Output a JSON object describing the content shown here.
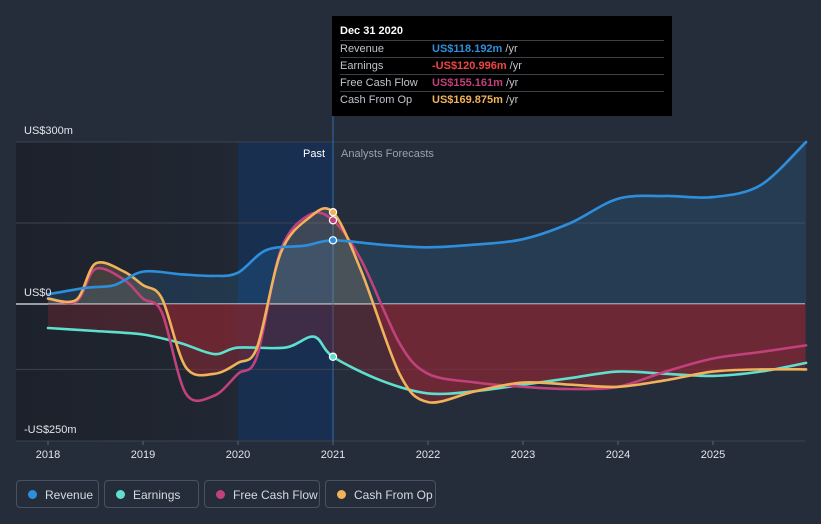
{
  "colors": {
    "background": "#262d3a",
    "revenue": "#2d8fdc",
    "earnings": "#5ee0cf",
    "free_cash_flow": "#c2417c",
    "cash_from_op": "#f0b25a",
    "negative_fill": "#8a2833",
    "tooltip_negative": "#ef4444"
  },
  "tooltip": {
    "date": "Dec 31 2020",
    "rows": [
      {
        "name": "Revenue",
        "value": "US$118.192m",
        "unit": "/yr",
        "color": "#2d8fdc"
      },
      {
        "name": "Earnings",
        "value": "-US$120.996m",
        "unit": "/yr",
        "color": "#ef4444"
      },
      {
        "name": "Free Cash Flow",
        "value": "US$155.161m",
        "unit": "/yr",
        "color": "#c2417c"
      },
      {
        "name": "Cash From Op",
        "value": "US$169.875m",
        "unit": "/yr",
        "color": "#f0b25a"
      }
    ]
  },
  "legend": [
    {
      "label": "Revenue",
      "color": "#2d8fdc"
    },
    {
      "label": "Earnings",
      "color": "#5ee0cf"
    },
    {
      "label": "Free Cash Flow",
      "color": "#c2417c"
    },
    {
      "label": "Cash From Op",
      "color": "#f0b25a"
    }
  ],
  "chart_data": {
    "type": "line",
    "y_tick_labels": [
      "US$300m",
      "US$0",
      "-US$250m"
    ],
    "ylim": [
      -250,
      300
    ],
    "xlim": [
      2018.0,
      2025.98
    ],
    "x_tick_labels": [
      "2018",
      "2019",
      "2020",
      "2021",
      "2022",
      "2023",
      "2024",
      "2025"
    ],
    "x_ticks": [
      2018,
      2019,
      2020,
      2021,
      2022,
      2023,
      2024,
      2025
    ],
    "divider_x": 2021.0,
    "past_label": "Past",
    "forecast_label": "Analysts Forecasts",
    "highlight_range": [
      2020.0,
      2021.0
    ],
    "grid": "horizontal",
    "series": [
      {
        "name": "Revenue",
        "key": "revenue",
        "points": [
          [
            2018.0,
            18
          ],
          [
            2018.4,
            30
          ],
          [
            2018.7,
            35
          ],
          [
            2019.0,
            60
          ],
          [
            2019.4,
            55
          ],
          [
            2019.75,
            52
          ],
          [
            2020.0,
            58
          ],
          [
            2020.3,
            100
          ],
          [
            2020.7,
            108
          ],
          [
            2021.0,
            118
          ],
          [
            2021.5,
            110
          ],
          [
            2022.0,
            105
          ],
          [
            2022.5,
            110
          ],
          [
            2023.0,
            120
          ],
          [
            2023.5,
            150
          ],
          [
            2024.0,
            195
          ],
          [
            2024.5,
            200
          ],
          [
            2025.0,
            198
          ],
          [
            2025.5,
            220
          ],
          [
            2025.98,
            300
          ]
        ]
      },
      {
        "name": "Earnings",
        "key": "earnings",
        "points": [
          [
            2018.0,
            -55
          ],
          [
            2018.5,
            -62
          ],
          [
            2019.0,
            -70
          ],
          [
            2019.4,
            -90
          ],
          [
            2019.75,
            -115
          ],
          [
            2020.0,
            -100
          ],
          [
            2020.5,
            -100
          ],
          [
            2020.8,
            -75
          ],
          [
            2021.0,
            -121
          ],
          [
            2021.5,
            -175
          ],
          [
            2022.0,
            -205
          ],
          [
            2022.5,
            -200
          ],
          [
            2023.0,
            -185
          ],
          [
            2023.5,
            -170
          ],
          [
            2024.0,
            -155
          ],
          [
            2024.5,
            -160
          ],
          [
            2025.0,
            -165
          ],
          [
            2025.5,
            -155
          ],
          [
            2025.98,
            -135
          ]
        ]
      },
      {
        "name": "Free Cash Flow",
        "key": "free_cash_flow",
        "points": [
          [
            2018.0,
            10
          ],
          [
            2018.3,
            5
          ],
          [
            2018.5,
            65
          ],
          [
            2018.8,
            45
          ],
          [
            2019.0,
            10
          ],
          [
            2019.2,
            -20
          ],
          [
            2019.45,
            -205
          ],
          [
            2019.75,
            -210
          ],
          [
            2020.0,
            -160
          ],
          [
            2020.2,
            -120
          ],
          [
            2020.45,
            100
          ],
          [
            2020.75,
            165
          ],
          [
            2021.0,
            155
          ],
          [
            2021.3,
            80
          ],
          [
            2021.7,
            -90
          ],
          [
            2022.0,
            -160
          ],
          [
            2022.5,
            -180
          ],
          [
            2023.0,
            -190
          ],
          [
            2023.5,
            -195
          ],
          [
            2024.0,
            -190
          ],
          [
            2024.5,
            -155
          ],
          [
            2025.0,
            -125
          ],
          [
            2025.5,
            -110
          ],
          [
            2025.98,
            -95
          ]
        ]
      },
      {
        "name": "Cash From Op",
        "key": "cash_from_op",
        "points": [
          [
            2018.0,
            10
          ],
          [
            2018.3,
            8
          ],
          [
            2018.5,
            75
          ],
          [
            2018.8,
            60
          ],
          [
            2019.0,
            35
          ],
          [
            2019.2,
            10
          ],
          [
            2019.45,
            -145
          ],
          [
            2019.75,
            -160
          ],
          [
            2020.0,
            -135
          ],
          [
            2020.2,
            -100
          ],
          [
            2020.45,
            95
          ],
          [
            2020.75,
            160
          ],
          [
            2021.0,
            170
          ],
          [
            2021.3,
            60
          ],
          [
            2021.7,
            -160
          ],
          [
            2022.0,
            -225
          ],
          [
            2022.5,
            -200
          ],
          [
            2023.0,
            -180
          ],
          [
            2023.5,
            -185
          ],
          [
            2024.0,
            -190
          ],
          [
            2024.5,
            -175
          ],
          [
            2025.0,
            -155
          ],
          [
            2025.5,
            -150
          ],
          [
            2025.98,
            -150
          ]
        ]
      }
    ]
  }
}
